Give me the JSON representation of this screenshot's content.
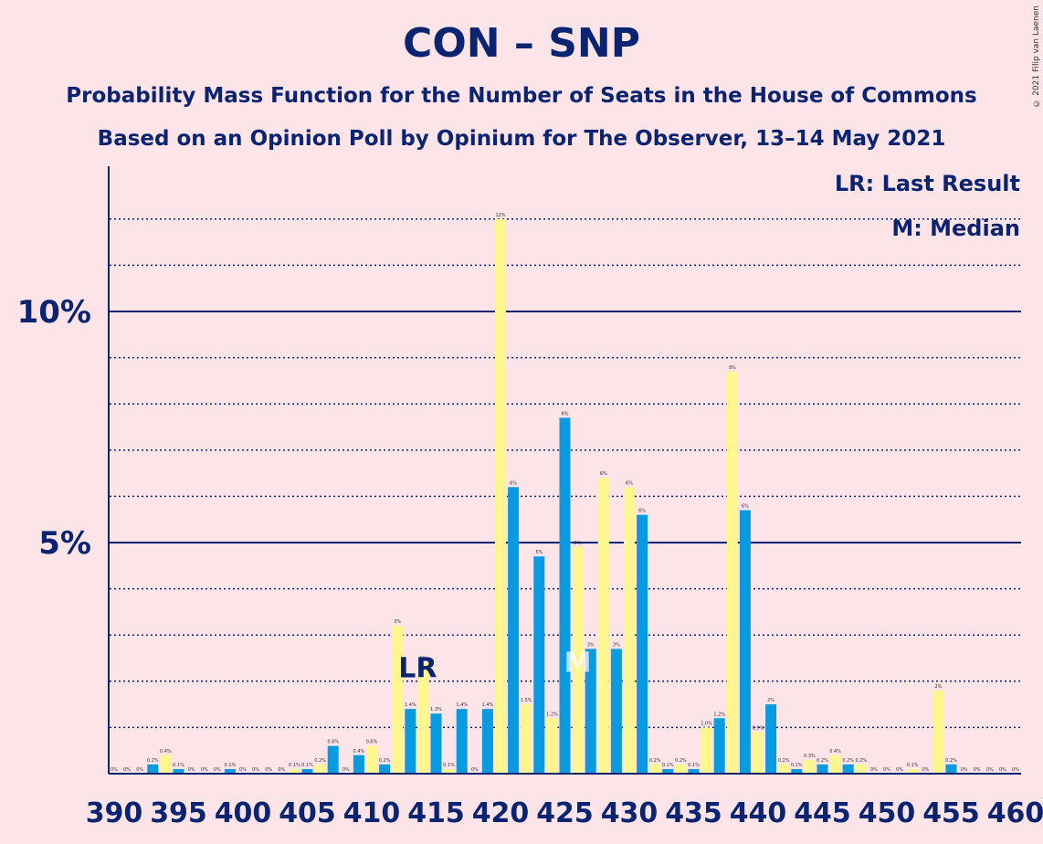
{
  "title": "CON – SNP",
  "subtitle1": "Probability Mass Function for the Number of Seats in the House of Commons",
  "subtitle2": "Based on an Opinion Poll by Opinium for The Observer, 13–14 May 2021",
  "copyright": "© 2021 Filip van Laenen",
  "legend": {
    "last_result": "LR: Last Result",
    "median": "M: Median"
  },
  "markers": {
    "last_result_label": "LR",
    "median_label": "M"
  },
  "colors": {
    "background": "#fde4e8",
    "blue": "#0a9ae0",
    "yellow": "#fff68f",
    "axis": "#0a2472"
  },
  "chart_data": {
    "type": "bar",
    "xlim": [
      390,
      460
    ],
    "ylim": [
      0,
      13
    ],
    "y_ticks": [
      {
        "value": 5,
        "label": "5%"
      },
      {
        "value": 10,
        "label": "10%"
      }
    ],
    "x_ticks": [
      390,
      395,
      400,
      405,
      410,
      415,
      420,
      425,
      430,
      435,
      440,
      445,
      450,
      455,
      460
    ],
    "minor_grid": [
      1,
      2,
      3,
      4,
      6,
      7,
      8,
      9,
      11,
      12
    ],
    "last_result_seat": 414,
    "median_seat": 426,
    "series": [
      {
        "seat": 390,
        "value": 0,
        "label": "0%"
      },
      {
        "seat": 391,
        "value": 0,
        "label": "0%"
      },
      {
        "seat": 392,
        "value": 0,
        "label": "0%"
      },
      {
        "seat": 393,
        "value": 0.2,
        "label": "0.2%"
      },
      {
        "seat": 394,
        "value": 0.4,
        "label": "0.4%"
      },
      {
        "seat": 395,
        "value": 0.1,
        "label": "0.1%"
      },
      {
        "seat": 396,
        "value": 0,
        "label": "0%"
      },
      {
        "seat": 397,
        "value": 0,
        "label": "0%"
      },
      {
        "seat": 398,
        "value": 0,
        "label": "0%"
      },
      {
        "seat": 399,
        "value": 0.1,
        "label": "0.1%"
      },
      {
        "seat": 400,
        "value": 0,
        "label": "0%"
      },
      {
        "seat": 401,
        "value": 0,
        "label": "0%"
      },
      {
        "seat": 402,
        "value": 0,
        "label": "0%"
      },
      {
        "seat": 403,
        "value": 0,
        "label": "0%"
      },
      {
        "seat": 404,
        "value": 0.1,
        "label": "0.1%"
      },
      {
        "seat": 405,
        "value": 0.1,
        "label": "0.1%"
      },
      {
        "seat": 406,
        "value": 0.2,
        "label": "0.2%"
      },
      {
        "seat": 407,
        "value": 0.6,
        "label": "0.6%"
      },
      {
        "seat": 408,
        "value": 0,
        "label": "0%"
      },
      {
        "seat": 409,
        "value": 0.4,
        "label": "0.4%"
      },
      {
        "seat": 410,
        "value": 0.6,
        "label": "0.6%"
      },
      {
        "seat": 411,
        "value": 0.2,
        "label": "0.2%"
      },
      {
        "seat": 412,
        "value": 3.2,
        "label": "3%"
      },
      {
        "seat": 413,
        "value": 1.4,
        "label": "1.4%"
      },
      {
        "seat": 414,
        "value": 2.4,
        "label": "2%"
      },
      {
        "seat": 415,
        "value": 1.3,
        "label": "1.3%"
      },
      {
        "seat": 416,
        "value": 0.1,
        "label": "0.1%"
      },
      {
        "seat": 417,
        "value": 1.4,
        "label": "1.4%"
      },
      {
        "seat": 418,
        "value": 0,
        "label": "0%"
      },
      {
        "seat": 419,
        "value": 1.4,
        "label": "1.4%"
      },
      {
        "seat": 420,
        "value": 12,
        "label": "12%"
      },
      {
        "seat": 421,
        "value": 6.2,
        "label": "6%"
      },
      {
        "seat": 422,
        "value": 1.5,
        "label": "1.5%"
      },
      {
        "seat": 423,
        "value": 4.7,
        "label": "5%"
      },
      {
        "seat": 424,
        "value": 1.2,
        "label": "1.2%"
      },
      {
        "seat": 425,
        "value": 7.7,
        "label": "8%"
      },
      {
        "seat": 426,
        "value": 4.9,
        "label": "5%"
      },
      {
        "seat": 427,
        "value": 2.7,
        "label": "3%"
      },
      {
        "seat": 428,
        "value": 6.4,
        "label": "6%"
      },
      {
        "seat": 429,
        "value": 2.7,
        "label": "3%"
      },
      {
        "seat": 430,
        "value": 6.2,
        "label": "6%"
      },
      {
        "seat": 431,
        "value": 5.6,
        "label": "6%"
      },
      {
        "seat": 432,
        "value": 0.2,
        "label": "0.2%"
      },
      {
        "seat": 433,
        "value": 0.1,
        "label": "0.1%"
      },
      {
        "seat": 434,
        "value": 0.2,
        "label": "0.2%"
      },
      {
        "seat": 435,
        "value": 0.1,
        "label": "0.1%"
      },
      {
        "seat": 436,
        "value": 1.0,
        "label": "1.0%"
      },
      {
        "seat": 437,
        "value": 1.2,
        "label": "1.2%"
      },
      {
        "seat": 438,
        "value": 8.7,
        "label": "9%"
      },
      {
        "seat": 439,
        "value": 5.7,
        "label": "6%"
      },
      {
        "seat": 440,
        "value": 0.9,
        "label": "0.9%"
      },
      {
        "seat": 441,
        "value": 1.5,
        "label": "2%"
      },
      {
        "seat": 442,
        "value": 0.2,
        "label": "0.2%"
      },
      {
        "seat": 443,
        "value": 0.1,
        "label": "0.1%"
      },
      {
        "seat": 444,
        "value": 0.3,
        "label": "0.3%"
      },
      {
        "seat": 445,
        "value": 0.2,
        "label": "0.2%"
      },
      {
        "seat": 446,
        "value": 0.4,
        "label": "0.4%"
      },
      {
        "seat": 447,
        "value": 0.2,
        "label": "0.2%"
      },
      {
        "seat": 448,
        "value": 0.2,
        "label": "0.2%"
      },
      {
        "seat": 449,
        "value": 0,
        "label": "0%"
      },
      {
        "seat": 450,
        "value": 0,
        "label": "0%"
      },
      {
        "seat": 451,
        "value": 0,
        "label": "0%"
      },
      {
        "seat": 452,
        "value": 0.1,
        "label": "0.1%"
      },
      {
        "seat": 453,
        "value": 0,
        "label": "0%"
      },
      {
        "seat": 454,
        "value": 1.8,
        "label": "2%"
      },
      {
        "seat": 455,
        "value": 0.2,
        "label": "0.2%"
      },
      {
        "seat": 456,
        "value": 0,
        "label": "0%"
      },
      {
        "seat": 457,
        "value": 0,
        "label": "0%"
      },
      {
        "seat": 458,
        "value": 0,
        "label": "0%"
      },
      {
        "seat": 459,
        "value": 0,
        "label": "0%"
      },
      {
        "seat": 460,
        "value": 0,
        "label": "0%"
      }
    ]
  }
}
